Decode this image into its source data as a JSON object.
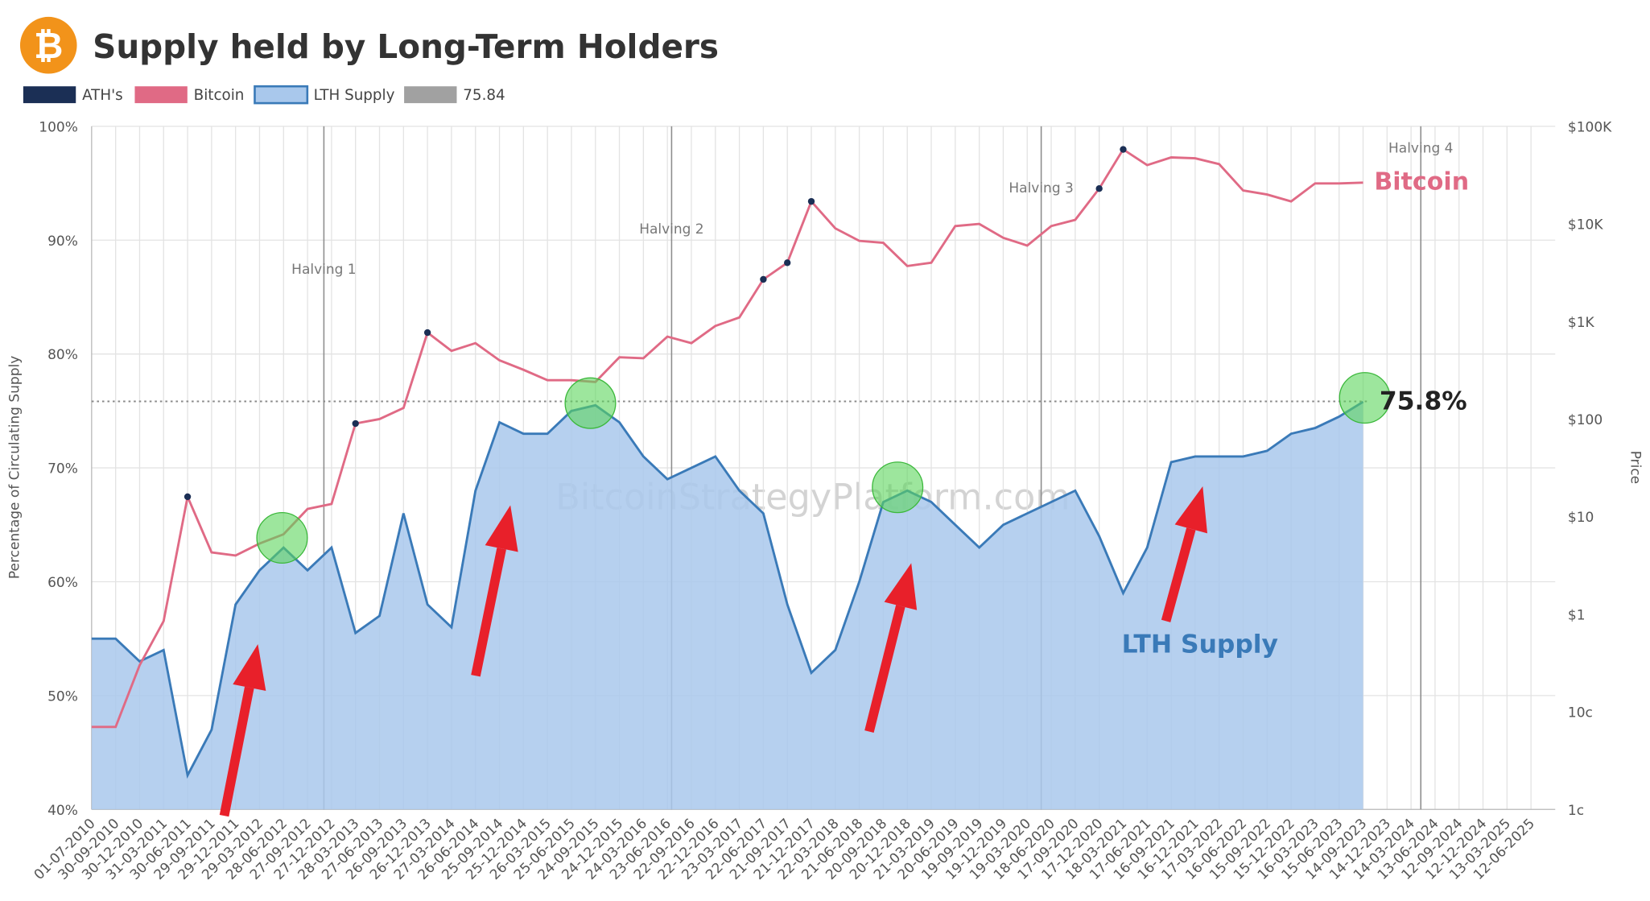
{
  "chart_data": {
    "type": "area_line",
    "title": "Supply held by Long-Term Holders",
    "logo_symbol": "₿",
    "ylabel": "Percentage of Circulating Supply",
    "y2label": "Price",
    "watermark": "BitcoinStrategyPlatform.com",
    "categories": [
      "01-07-2010",
      "30-09-2010",
      "30-12-2010",
      "31-03-2011",
      "30-06-2011",
      "29-09-2011",
      "29-12-2011",
      "29-03-2012",
      "28-06-2012",
      "27-09-2012",
      "27-12-2012",
      "28-03-2013",
      "27-06-2013",
      "26-09-2013",
      "26-12-2013",
      "27-03-2014",
      "26-06-2014",
      "25-09-2014",
      "25-12-2014",
      "26-03-2015",
      "25-06-2015",
      "24-09-2015",
      "24-12-2015",
      "24-03-2016",
      "23-06-2016",
      "22-09-2016",
      "22-12-2016",
      "23-03-2017",
      "22-06-2017",
      "21-09-2017",
      "21-12-2017",
      "22-03-2018",
      "21-06-2018",
      "20-09-2018",
      "20-12-2018",
      "21-03-2019",
      "20-06-2019",
      "19-09-2019",
      "19-12-2019",
      "19-03-2020",
      "18-06-2020",
      "17-09-2020",
      "17-12-2020",
      "18-03-2021",
      "17-06-2021",
      "16-09-2021",
      "16-12-2021",
      "17-03-2022",
      "16-06-2022",
      "15-09-2022",
      "15-12-2022",
      "16-03-2023",
      "15-06-2023",
      "14-09-2023",
      "14-12-2023",
      "14-03-2024",
      "13-06-2024",
      "12-09-2024",
      "12-12-2024",
      "13-03-2025",
      "12-06-2025"
    ],
    "series": [
      {
        "name": "ATH's",
        "color": "#1b2f55",
        "axis": "y2",
        "style": "dots",
        "values": [
          null,
          null,
          null,
          null,
          16,
          null,
          null,
          null,
          null,
          null,
          null,
          90,
          null,
          null,
          770,
          null,
          null,
          null,
          null,
          null,
          null,
          null,
          null,
          null,
          null,
          null,
          null,
          null,
          2700,
          4000,
          17000,
          null,
          null,
          null,
          null,
          null,
          null,
          null,
          null,
          null,
          null,
          null,
          23000,
          58000,
          null,
          null,
          null,
          null,
          null,
          null,
          null,
          null,
          null,
          null,
          null,
          null,
          null,
          null,
          null,
          null,
          null
        ]
      },
      {
        "name": "Bitcoin",
        "color": "#e06a85",
        "axis": "y2",
        "style": "line",
        "values": [
          0.07,
          0.07,
          0.3,
          0.85,
          16,
          4.3,
          4,
          5.3,
          6.6,
          12,
          13.5,
          90,
          100,
          130,
          770,
          500,
          600,
          400,
          320,
          250,
          250,
          240,
          430,
          420,
          700,
          600,
          900,
          1100,
          2700,
          4000,
          17000,
          9000,
          6700,
          6400,
          3700,
          4000,
          9500,
          10000,
          7200,
          6000,
          9500,
          11000,
          23000,
          58000,
          40000,
          48000,
          47000,
          41000,
          22000,
          20000,
          17000,
          26000,
          26000,
          26500,
          null,
          null,
          null,
          null,
          null,
          null,
          null
        ]
      },
      {
        "name": "LTH Supply",
        "color": "#3a7ab8",
        "fill": "#a9c8ec",
        "style": "area",
        "values": [
          55,
          55,
          53,
          54,
          43,
          47,
          58,
          61,
          63,
          61,
          63,
          55.5,
          57,
          66,
          58,
          56,
          68,
          74,
          73,
          73,
          75,
          75.5,
          74,
          71,
          69,
          70,
          71,
          68,
          66,
          58,
          52,
          54,
          60,
          67,
          68,
          67,
          65,
          63,
          65,
          66,
          67,
          68,
          64,
          59,
          63,
          70.5,
          71,
          71,
          71,
          71.5,
          73,
          73.5,
          74.5,
          75.8,
          null,
          null,
          null,
          null,
          null,
          null,
          null
        ]
      }
    ],
    "reference_line": {
      "value": 75.84,
      "color": "#8a8a8a"
    },
    "annotations": [
      "75.8%",
      "Bitcoin",
      "LTH Supply"
    ],
    "halvings": [
      {
        "label": "Halving 1",
        "date": "28-11-2012"
      },
      {
        "label": "Halving 2",
        "date": "09-07-2016"
      },
      {
        "label": "Halving 3",
        "date": "11-05-2020"
      },
      {
        "label": "Halving 4",
        "date": "20-04-2024"
      }
    ],
    "ylim": [
      40,
      100
    ],
    "yticks": [
      {
        "value": 40,
        "label": "40%"
      },
      {
        "value": 50,
        "label": "50%"
      },
      {
        "value": 60,
        "label": "60%"
      },
      {
        "value": 70,
        "label": "70%"
      },
      {
        "value": 80,
        "label": "80%"
      },
      {
        "value": 90,
        "label": "90%"
      },
      {
        "value": 100,
        "label": "100%"
      }
    ],
    "y2lim": [
      0.01,
      100000
    ],
    "y2_log": true,
    "y2ticks": [
      {
        "value": 0.01,
        "label": "1c"
      },
      {
        "value": 0.1,
        "label": "10c"
      },
      {
        "value": 1,
        "label": "$1"
      },
      {
        "value": 10,
        "label": "$10"
      },
      {
        "value": 100,
        "label": "$100"
      },
      {
        "value": 1000,
        "label": "$1K"
      },
      {
        "value": 10000,
        "label": "$10K"
      },
      {
        "value": 100000,
        "label": "$100K"
      }
    ],
    "grid": true
  }
}
